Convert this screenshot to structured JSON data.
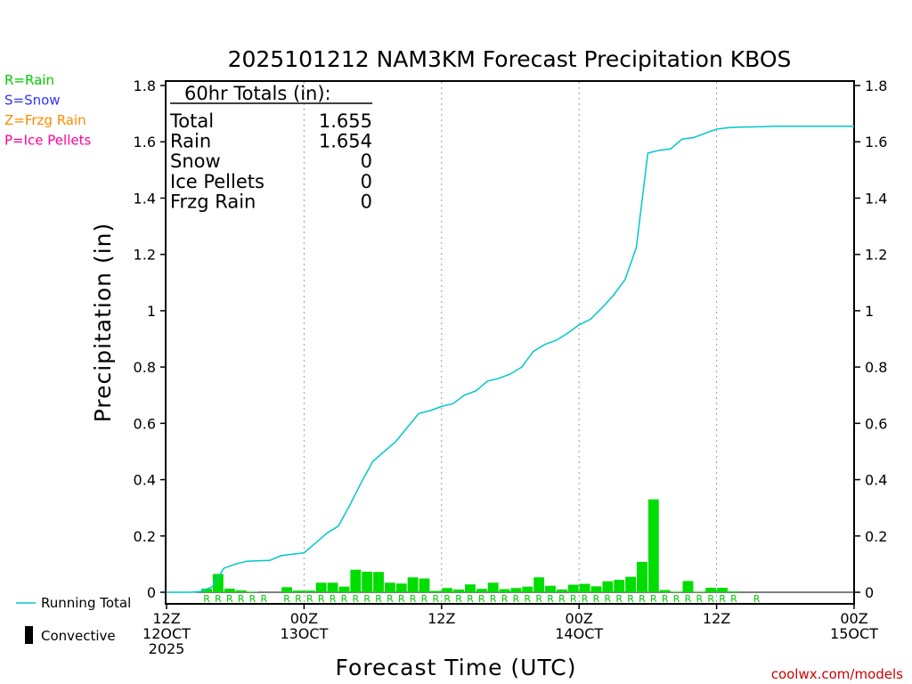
{
  "chart_data": {
    "type": "bar",
    "title": "2025101212 NAM3KM Forecast Precipitation KBOS",
    "xlabel": "Forecast Time (UTC)",
    "ylabel": "Precipitation (in)",
    "ylim": [
      0,
      1.8
    ],
    "ytick_labels": [
      "0",
      "0.2",
      "0.4",
      "0.6",
      "0.8",
      "1",
      "1.2",
      "1.4",
      "1.6",
      "1.8"
    ],
    "x_unit": "forecast hour",
    "xlim": [
      0,
      60
    ],
    "x_ticks": [
      {
        "hour": 0,
        "lines": [
          "12Z",
          "12OCT",
          "2025"
        ]
      },
      {
        "hour": 12,
        "lines": [
          "00Z",
          "13OCT"
        ]
      },
      {
        "hour": 24,
        "lines": [
          "12Z"
        ]
      },
      {
        "hour": 36,
        "lines": [
          "00Z",
          "14OCT"
        ]
      },
      {
        "hour": 48,
        "lines": [
          "12Z"
        ]
      },
      {
        "hour": 60,
        "lines": [
          "00Z",
          "15OCT"
        ]
      }
    ],
    "precip_type_legend": [
      {
        "label": "R=Rain",
        "color": "#00cc00"
      },
      {
        "label": "S=Snow",
        "color": "#3333ff"
      },
      {
        "label": "Z=Frzg Rain",
        "color": "#ff8800"
      },
      {
        "label": "P=Ice Pellets",
        "color": "#ff0099"
      }
    ],
    "series_legend": [
      {
        "label": "Running Total",
        "color": "#00c8c8"
      },
      {
        "label": "Convective",
        "color": "#000000"
      }
    ],
    "totals": {
      "header": "60hr Totals (in):",
      "rows": [
        {
          "label": "Total",
          "value": "1.655"
        },
        {
          "label": "Rain",
          "value": "1.654"
        },
        {
          "label": "Snow",
          "value": "0"
        },
        {
          "label": "Ice Pellets",
          "value": "0"
        },
        {
          "label": "Frzg Rain",
          "value": "0"
        }
      ]
    },
    "hourly_bars": {
      "name": "Hourly Rain",
      "color": "#00dd00",
      "hours": [
        4,
        5,
        6,
        7,
        8,
        11,
        12,
        13,
        14,
        15,
        16,
        17,
        18,
        19,
        20,
        21,
        22,
        23,
        24,
        25,
        26,
        27,
        28,
        29,
        30,
        31,
        32,
        33,
        34,
        35,
        36,
        37,
        38,
        39,
        40,
        41,
        42,
        43,
        44,
        45,
        46,
        47,
        48,
        49,
        50
      ],
      "values": [
        0.013,
        0.065,
        0.013,
        0.007,
        0.002,
        0.018,
        0.006,
        0.006,
        0.034,
        0.034,
        0.02,
        0.08,
        0.073,
        0.072,
        0.034,
        0.031,
        0.053,
        0.049,
        0.005,
        0.015,
        0.01,
        0.028,
        0.012,
        0.034,
        0.011,
        0.015,
        0.02,
        0.053,
        0.023,
        0.01,
        0.027,
        0.03,
        0.021,
        0.039,
        0.044,
        0.055,
        0.108,
        0.33,
        0.008,
        0.002,
        0.04,
        0.002,
        0.016,
        0.016,
        0.003
      ]
    },
    "running_total": {
      "name": "Running Total",
      "color": "#00c8c8",
      "x": [
        0,
        1,
        2,
        3,
        4,
        5,
        6,
        7,
        8,
        9,
        10,
        11,
        12,
        13,
        14,
        15,
        16,
        17,
        18,
        19,
        20,
        21,
        22,
        23,
        24,
        25,
        26,
        27,
        28,
        29,
        30,
        31,
        32,
        33,
        34,
        35,
        36,
        37,
        38,
        39,
        40,
        41,
        42,
        43,
        44,
        45,
        46,
        47,
        48,
        49,
        50,
        51,
        52,
        53,
        54,
        55,
        56,
        57,
        58,
        59,
        60
      ],
      "y": [
        0,
        0,
        0,
        0.003,
        0.02,
        0.085,
        0.1,
        0.11,
        0.112,
        0.113,
        0.13,
        0.135,
        0.14,
        0.175,
        0.21,
        0.235,
        0.31,
        0.39,
        0.465,
        0.5,
        0.535,
        0.585,
        0.635,
        0.645,
        0.66,
        0.67,
        0.7,
        0.715,
        0.75,
        0.76,
        0.775,
        0.8,
        0.855,
        0.88,
        0.895,
        0.92,
        0.95,
        0.97,
        1.01,
        1.055,
        1.11,
        1.225,
        1.56,
        1.57,
        1.575,
        1.61,
        1.615,
        1.63,
        1.645,
        1.65,
        1.652,
        1.653,
        1.654,
        1.655,
        1.655,
        1.655,
        1.655,
        1.655,
        1.655,
        1.655,
        1.655
      ]
    },
    "type_marks": {
      "letter": "R",
      "hours": [
        4,
        5,
        6,
        7,
        8,
        9,
        11,
        12,
        13,
        14,
        15,
        16,
        17,
        18,
        19,
        20,
        21,
        22,
        23,
        24,
        25,
        26,
        27,
        28,
        29,
        30,
        31,
        32,
        33,
        34,
        35,
        36,
        37,
        38,
        39,
        40,
        41,
        42,
        43,
        44,
        45,
        46,
        47,
        48,
        49,
        50,
        52
      ]
    },
    "credit": "coolwx.com/models"
  }
}
